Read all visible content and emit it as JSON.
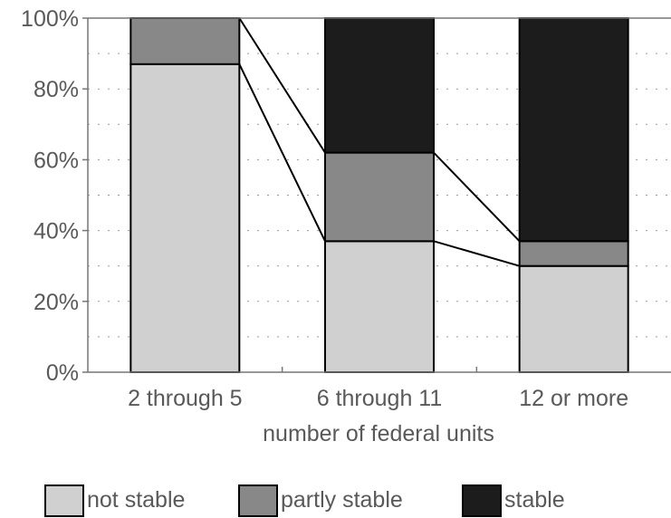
{
  "chart_data": {
    "type": "bar",
    "stacked": true,
    "categories": [
      "2 through 5",
      "6 through 11",
      "12 or more"
    ],
    "series": [
      {
        "name": "not stable",
        "values": [
          87,
          37,
          30
        ],
        "color": "#d0d0d0"
      },
      {
        "name": "partly stable",
        "values": [
          13,
          25,
          7
        ],
        "color": "#888888"
      },
      {
        "name": "stable",
        "values": [
          0,
          38,
          63
        ],
        "color": "#1c1c1c"
      }
    ],
    "xlabel": "number of federal units",
    "ylabel": "",
    "ylim": [
      0,
      100
    ],
    "y_ticks": [
      "0%",
      "20%",
      "40%",
      "60%",
      "80%",
      "100%"
    ],
    "grid": "dotted horizontal",
    "legend": "bottom",
    "connector_lines": true
  }
}
